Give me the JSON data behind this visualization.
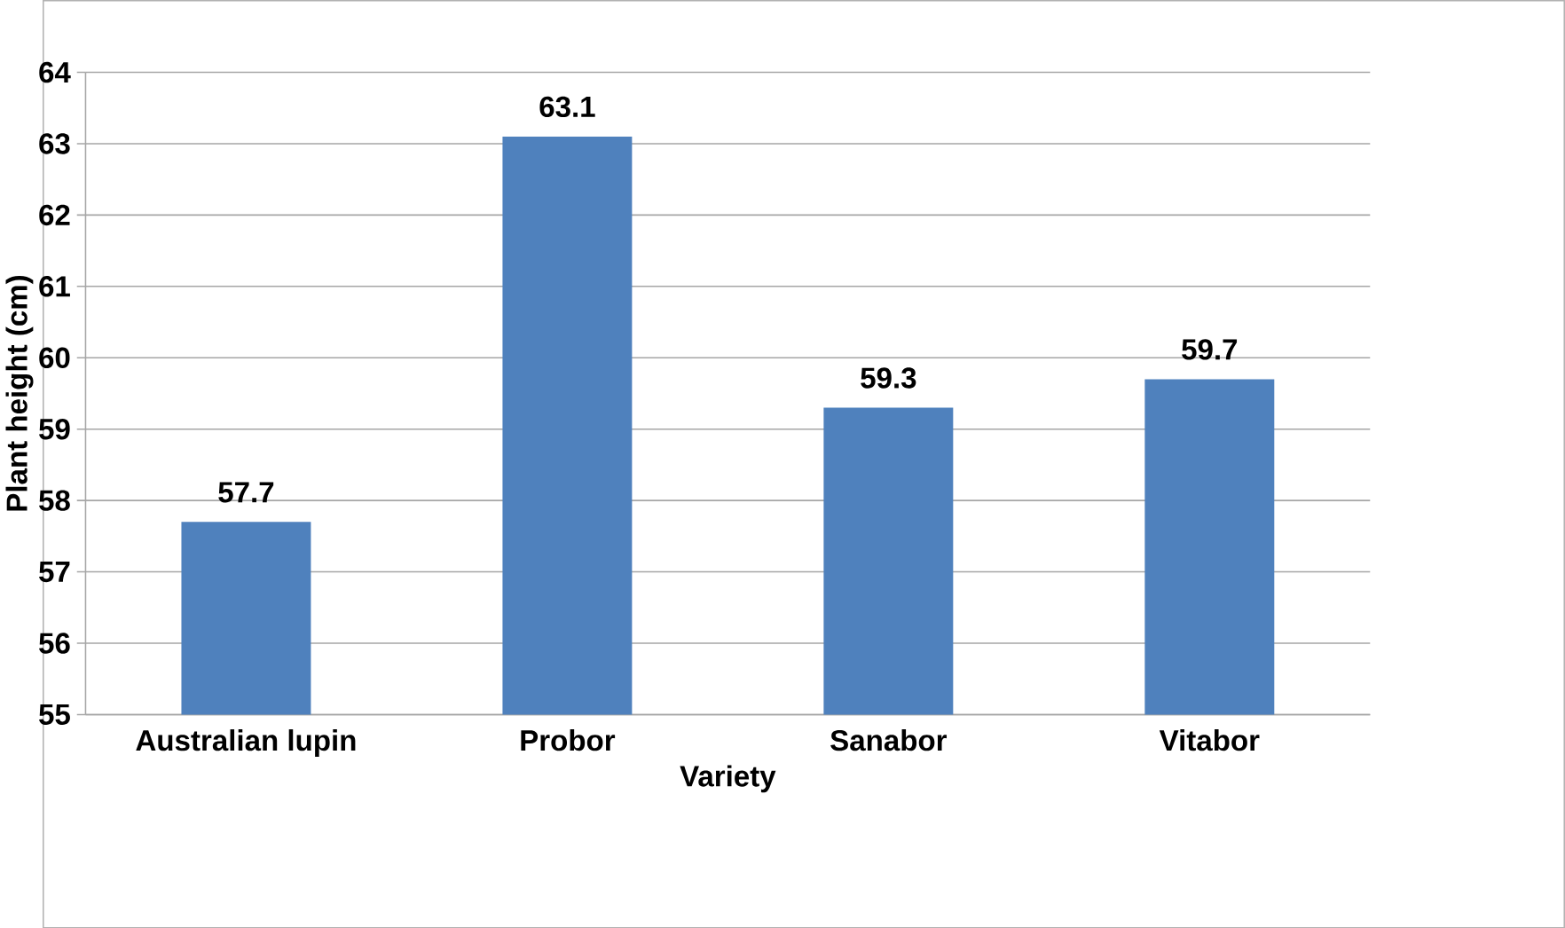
{
  "chart_data": {
    "type": "bar",
    "xlabel": "Variety",
    "ylabel": "Plant height (cm)",
    "categories": [
      "Australian lupin",
      "Probor",
      "Sanabor",
      "Vitabor"
    ],
    "values": [
      57.7,
      63.1,
      59.3,
      59.7
    ],
    "color": "#4f81bd",
    "ylim": [
      55,
      64
    ],
    "yticks": [
      55,
      56,
      57,
      58,
      59,
      60,
      61,
      62,
      63,
      64
    ],
    "grid": "y",
    "data_labels": true
  }
}
